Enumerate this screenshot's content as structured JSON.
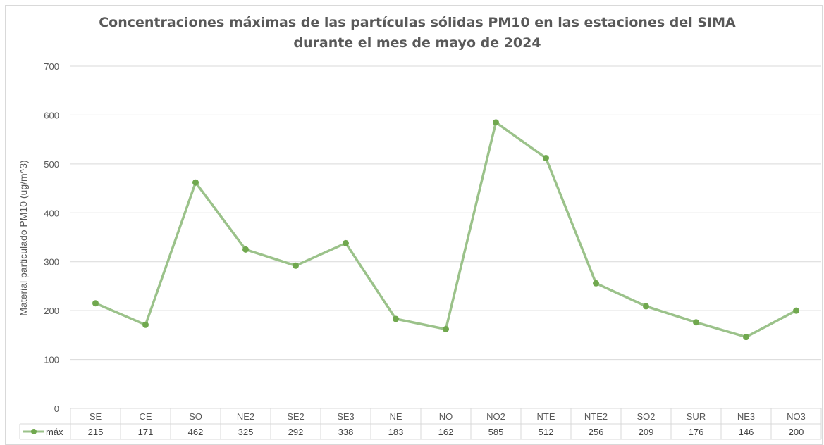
{
  "chart_data": {
    "type": "line",
    "title": "Concentraciones máximas de las partículas sólidas PM10 en las estaciones del SIMA",
    "subtitle": "durante el mes de mayo de 2024",
    "ylabel": "Material particulado PM10 (ug/m^3)",
    "xlabel": "",
    "ylim": [
      0,
      700
    ],
    "yticks": [
      "0",
      "100",
      "200",
      "300",
      "400",
      "500",
      "600",
      "700"
    ],
    "grid": true,
    "legend": "data-table",
    "categories": [
      "SE",
      "CE",
      "SO",
      "NE2",
      "SE2",
      "SE3",
      "NE",
      "NO",
      "NO2",
      "NTE",
      "NTE2",
      "SO2",
      "SUR",
      "NE3",
      "NO3"
    ],
    "series": [
      {
        "name": "máx",
        "color": "#9bc28a",
        "marker_color": "#70a84e",
        "values": [
          215,
          171,
          462,
          325,
          292,
          338,
          183,
          162,
          585,
          512,
          256,
          209,
          176,
          146,
          200
        ]
      }
    ]
  }
}
